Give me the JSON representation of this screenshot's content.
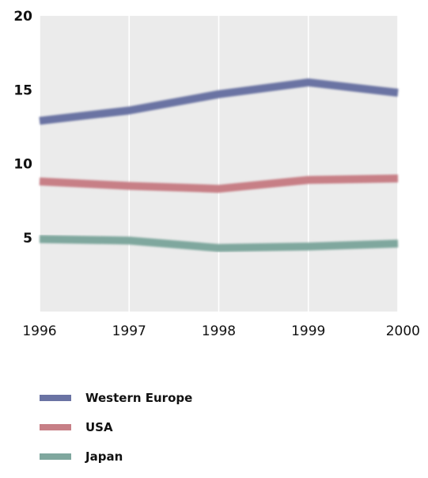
{
  "chart_data": {
    "type": "line",
    "x": [
      1996,
      1997,
      1998,
      1999,
      2000
    ],
    "x_tick_labels": [
      "1996",
      "1997",
      "1998",
      "1999",
      "2000"
    ],
    "y_tick_values": [
      5,
      10,
      15,
      20
    ],
    "y_tick_labels": [
      "5",
      "10",
      "15",
      "20"
    ],
    "ylim": [
      0,
      20
    ],
    "xlim": [
      1996,
      2000
    ],
    "grid": "vertical",
    "legend_position": "bottom",
    "plot_background": "#ebebeb",
    "series": [
      {
        "name": "Western Europe",
        "color": "#6a73a3",
        "values": [
          12.9,
          13.6,
          14.7,
          15.5,
          14.8
        ]
      },
      {
        "name": "USA",
        "color": "#c77f86",
        "values": [
          8.8,
          8.5,
          8.3,
          8.9,
          9.0
        ]
      },
      {
        "name": "Japan",
        "color": "#7fa79e",
        "values": [
          4.9,
          4.8,
          4.3,
          4.4,
          4.6
        ]
      }
    ]
  }
}
